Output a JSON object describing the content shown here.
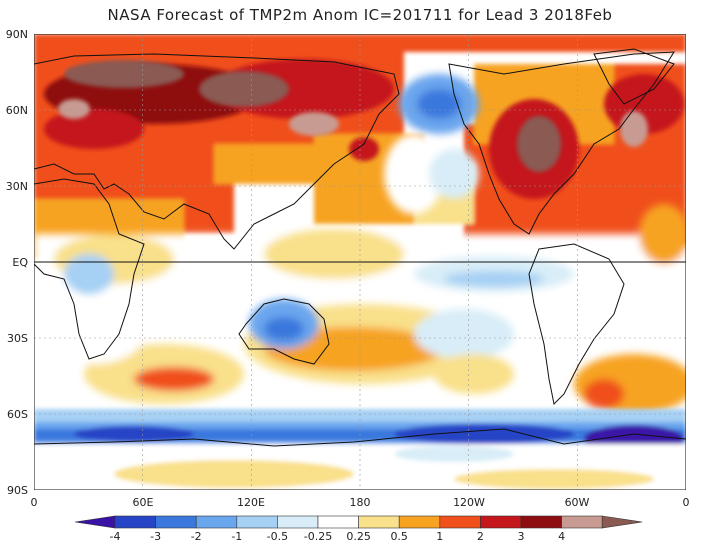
{
  "title": "NASA Forecast of TMP2m Anom IC=201711 for Lead 3 2018Feb",
  "lat_labels": [
    "90N",
    "60N",
    "30N",
    "EQ",
    "30S",
    "60S",
    "90S"
  ],
  "lon_labels": [
    "0",
    "60E",
    "120E",
    "180",
    "120W",
    "60W",
    "0"
  ],
  "colorbar": {
    "labels": [
      "-4",
      "-3",
      "-2",
      "-1",
      "-0.5",
      "-0.25",
      "0.25",
      "0.5",
      "1",
      "2",
      "3",
      "4"
    ],
    "colors": [
      "#3a12a8",
      "#2645c6",
      "#3b78dd",
      "#6aa6ee",
      "#a6d0f4",
      "#d8edf8",
      "#ffffff",
      "#f9e08a",
      "#f7a321",
      "#f0501a",
      "#c4161b",
      "#8e0d10",
      "#c79b91",
      "#8a5a52"
    ]
  },
  "legend": {
    "extend_low": "#3a12a8",
    "extend_high": "#8a5a52"
  }
}
